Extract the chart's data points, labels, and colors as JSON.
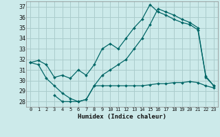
{
  "xlabel": "Humidex (Indice chaleur)",
  "background_color": "#cceaea",
  "grid_color": "#aacccc",
  "line_color": "#006666",
  "ylim": [
    27.5,
    37.5
  ],
  "xlim": [
    -0.5,
    23.5
  ],
  "yticks": [
    28,
    29,
    30,
    31,
    32,
    33,
    34,
    35,
    36,
    37
  ],
  "xticks": [
    0,
    1,
    2,
    3,
    4,
    5,
    6,
    7,
    8,
    9,
    10,
    11,
    12,
    13,
    14,
    15,
    16,
    17,
    18,
    19,
    20,
    21,
    22,
    23
  ],
  "series": [
    {
      "x": [
        0,
        1,
        2,
        3,
        4,
        5,
        6,
        7,
        8,
        9,
        10,
        11,
        12,
        13,
        14,
        15,
        16,
        17,
        18,
        19,
        20,
        21,
        22,
        23
      ],
      "y": [
        31.7,
        31.9,
        31.5,
        30.3,
        30.5,
        30.2,
        31.0,
        30.5,
        31.5,
        33.0,
        33.5,
        33.0,
        34.0,
        35.0,
        35.8,
        37.2,
        36.5,
        36.2,
        35.8,
        35.5,
        35.3,
        34.8,
        30.4,
        29.5
      ]
    },
    {
      "x": [
        0,
        1,
        2,
        3,
        4,
        5,
        6,
        7,
        8,
        9,
        10,
        11,
        12,
        13,
        14,
        15,
        16,
        17,
        18,
        19,
        20,
        21,
        22,
        23
      ],
      "y": [
        31.7,
        31.5,
        30.2,
        29.5,
        28.8,
        28.3,
        28.0,
        28.2,
        29.5,
        30.5,
        31.0,
        31.5,
        32.0,
        33.0,
        34.0,
        35.3,
        36.8,
        36.5,
        36.2,
        35.8,
        35.5,
        35.0,
        30.3,
        29.5
      ]
    },
    {
      "x": [
        3,
        4,
        5,
        6,
        7,
        8,
        9,
        10,
        11,
        12,
        13,
        14,
        15,
        16,
        17,
        18,
        19,
        20,
        21,
        22,
        23
      ],
      "y": [
        28.6,
        28.0,
        28.0,
        28.0,
        28.2,
        29.5,
        29.5,
        29.5,
        29.5,
        29.5,
        29.5,
        29.5,
        29.6,
        29.7,
        29.7,
        29.8,
        29.8,
        29.9,
        29.8,
        29.5,
        29.3
      ]
    }
  ]
}
